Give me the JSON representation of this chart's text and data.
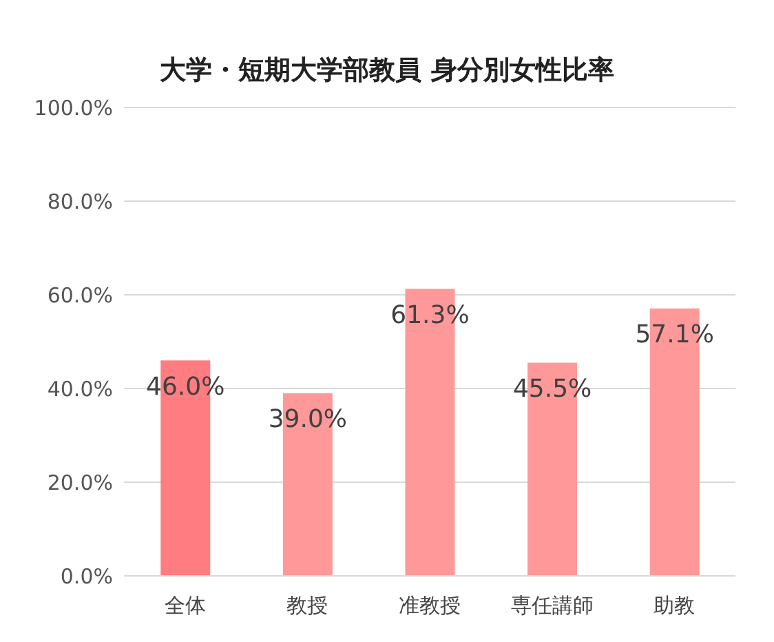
{
  "chart_data": {
    "type": "bar",
    "title": "大学・短期大学部教員 身分別女性比率",
    "categories": [
      "全体",
      "教授",
      "准教授",
      "専任講師",
      "助教"
    ],
    "values": [
      46.0,
      39.0,
      61.3,
      45.5,
      57.1
    ],
    "colors": [
      "#ff7c80",
      "#ff9999",
      "#ff9999",
      "#ff9999",
      "#ff9999"
    ],
    "value_labels": [
      "46.0%",
      "39.0%",
      "61.3%",
      "45.5%",
      "57.1%"
    ],
    "ylim": [
      0,
      100
    ],
    "yticks": [
      {
        "value": 0,
        "label": "0.0%"
      },
      {
        "value": 20,
        "label": "20.0%"
      },
      {
        "value": 40,
        "label": "40.0%"
      },
      {
        "value": 60,
        "label": "60.0%"
      },
      {
        "value": 80,
        "label": "80.0%"
      },
      {
        "value": 100,
        "label": "100.0%"
      }
    ],
    "grid": "y",
    "legend": false
  }
}
